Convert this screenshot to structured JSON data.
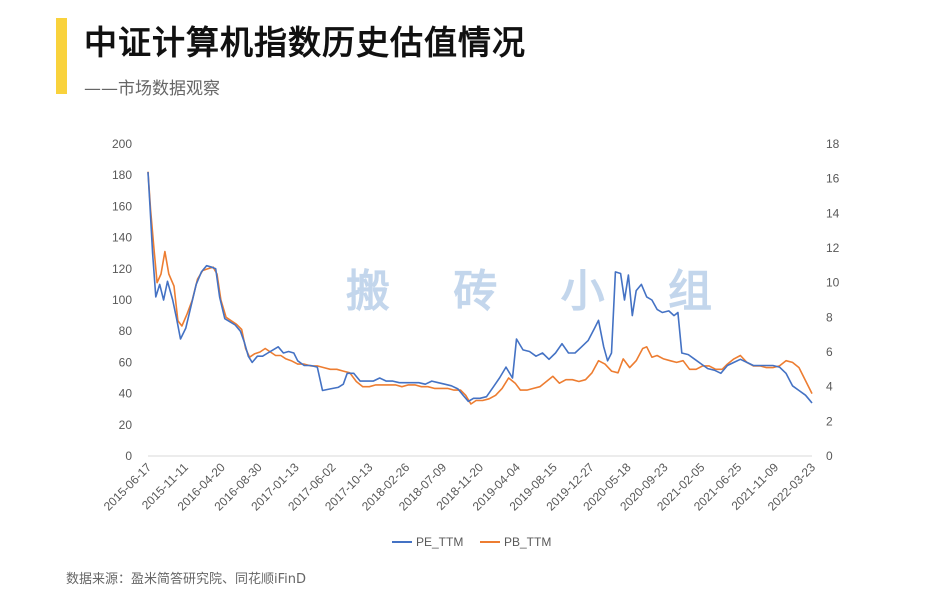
{
  "header": {
    "title": "中证计算机指数历史估值情况",
    "subtitle": "——市场数据观察"
  },
  "watermark": "搬 砖 小 组",
  "source": "数据来源：盈米简答研究院、同花顺iFinD",
  "colors": {
    "pe": "#4472c4",
    "pb": "#ed7d31",
    "accent": "#f9d23c"
  },
  "chart_data": {
    "type": "line",
    "title": "中证计算机指数历史估值情况",
    "x_tick_labels": [
      "2015-06-17",
      "2015-11-11",
      "2016-04-20",
      "2016-08-30",
      "2017-01-13",
      "2017-06-02",
      "2017-10-13",
      "2018-02-26",
      "2018-07-09",
      "2018-11-20",
      "2019-04-04",
      "2019-08-15",
      "2019-12-27",
      "2020-05-18",
      "2020-09-23",
      "2021-02-05",
      "2021-06-25",
      "2021-11-09",
      "2022-03-23"
    ],
    "y_left": {
      "range": [
        0,
        200
      ],
      "ticks": [
        0,
        20,
        40,
        60,
        80,
        100,
        120,
        140,
        160,
        180,
        200
      ]
    },
    "y_right": {
      "range": [
        0,
        18
      ],
      "ticks": [
        0,
        2,
        4,
        6,
        8,
        10,
        12,
        14,
        16,
        18
      ]
    },
    "legend_position": "bottom",
    "grid": false,
    "series": [
      {
        "name": "PE_TTM",
        "axis": "left",
        "color": "#4472c4",
        "points": [
          [
            0,
            182
          ],
          [
            0.15,
            160
          ],
          [
            0.35,
            130
          ],
          [
            0.6,
            102
          ],
          [
            0.9,
            110
          ],
          [
            1.2,
            100
          ],
          [
            1.5,
            112
          ],
          [
            1.9,
            100
          ],
          [
            2.2,
            88
          ],
          [
            2.5,
            75
          ],
          [
            2.9,
            82
          ],
          [
            3.3,
            96
          ],
          [
            3.7,
            110
          ],
          [
            4.1,
            118
          ],
          [
            4.5,
            122
          ],
          [
            4.9,
            121
          ],
          [
            5.2,
            120
          ],
          [
            5.5,
            102
          ],
          [
            5.9,
            88
          ],
          [
            6.3,
            86
          ],
          [
            6.7,
            84
          ],
          [
            7.1,
            80
          ],
          [
            7.4,
            73
          ],
          [
            7.7,
            64
          ],
          [
            8.0,
            60
          ],
          [
            8.4,
            64
          ],
          [
            8.8,
            64
          ],
          [
            9.2,
            66
          ],
          [
            9.6,
            68
          ],
          [
            10.0,
            70
          ],
          [
            10.4,
            66
          ],
          [
            10.8,
            67
          ],
          [
            11.2,
            66
          ],
          [
            11.5,
            61
          ],
          [
            12.0,
            58
          ],
          [
            12.5,
            58
          ],
          [
            13.0,
            57
          ],
          [
            13.4,
            42
          ],
          [
            14.0,
            43
          ],
          [
            14.6,
            44
          ],
          [
            15.0,
            46
          ],
          [
            15.3,
            53
          ],
          [
            15.8,
            53
          ],
          [
            16.3,
            48
          ],
          [
            16.8,
            48
          ],
          [
            17.3,
            48
          ],
          [
            17.8,
            50
          ],
          [
            18.3,
            48
          ],
          [
            18.8,
            48
          ],
          [
            19.3,
            47
          ],
          [
            19.8,
            47
          ],
          [
            20.3,
            47
          ],
          [
            20.8,
            47
          ],
          [
            21.3,
            46
          ],
          [
            21.8,
            48
          ],
          [
            22.3,
            47
          ],
          [
            22.8,
            46
          ],
          [
            23.3,
            45
          ],
          [
            23.8,
            43
          ],
          [
            24.2,
            39
          ],
          [
            24.6,
            35
          ],
          [
            25.0,
            37
          ],
          [
            25.5,
            37
          ],
          [
            26.0,
            38
          ],
          [
            26.5,
            44
          ],
          [
            27.0,
            50
          ],
          [
            27.5,
            57
          ],
          [
            28.0,
            50
          ],
          [
            28.3,
            75
          ],
          [
            28.8,
            68
          ],
          [
            29.3,
            67
          ],
          [
            29.8,
            64
          ],
          [
            30.3,
            66
          ],
          [
            30.8,
            62
          ],
          [
            31.3,
            66
          ],
          [
            31.8,
            72
          ],
          [
            32.3,
            66
          ],
          [
            32.8,
            66
          ],
          [
            33.3,
            70
          ],
          [
            33.8,
            74
          ],
          [
            34.3,
            82
          ],
          [
            34.6,
            87
          ],
          [
            35.0,
            70
          ],
          [
            35.3,
            61
          ],
          [
            35.6,
            66
          ],
          [
            35.9,
            118
          ],
          [
            36.3,
            117
          ],
          [
            36.6,
            100
          ],
          [
            36.9,
            116
          ],
          [
            37.2,
            90
          ],
          [
            37.5,
            106
          ],
          [
            37.9,
            110
          ],
          [
            38.3,
            102
          ],
          [
            38.7,
            100
          ],
          [
            39.1,
            94
          ],
          [
            39.5,
            92
          ],
          [
            40.0,
            93
          ],
          [
            40.4,
            90
          ],
          [
            40.7,
            92
          ],
          [
            41.0,
            66
          ],
          [
            41.5,
            65
          ],
          [
            42.0,
            62
          ],
          [
            42.5,
            59
          ],
          [
            43.0,
            56
          ],
          [
            43.5,
            55
          ],
          [
            44.0,
            53
          ],
          [
            44.5,
            58
          ],
          [
            45.0,
            60
          ],
          [
            45.5,
            62
          ],
          [
            46.0,
            60
          ],
          [
            46.5,
            58
          ],
          [
            47.0,
            58
          ],
          [
            47.5,
            58
          ],
          [
            48.0,
            58
          ],
          [
            48.5,
            57
          ],
          [
            49.0,
            53
          ],
          [
            49.5,
            45
          ],
          [
            50.0,
            42
          ],
          [
            50.5,
            39
          ],
          [
            50.8,
            36
          ],
          [
            51.0,
            34
          ]
        ]
      },
      {
        "name": "PB_TTM",
        "axis": "right",
        "color": "#ed7d31",
        "points": [
          [
            0,
            16.4
          ],
          [
            0.2,
            14.2
          ],
          [
            0.45,
            12.0
          ],
          [
            0.7,
            10.0
          ],
          [
            1.0,
            10.5
          ],
          [
            1.3,
            11.8
          ],
          [
            1.6,
            10.5
          ],
          [
            2.0,
            9.8
          ],
          [
            2.3,
            7.8
          ],
          [
            2.6,
            7.5
          ],
          [
            3.0,
            8.2
          ],
          [
            3.4,
            9.0
          ],
          [
            3.8,
            10.2
          ],
          [
            4.2,
            10.7
          ],
          [
            4.6,
            10.8
          ],
          [
            5.0,
            10.9
          ],
          [
            5.3,
            10.5
          ],
          [
            5.6,
            9.0
          ],
          [
            6.0,
            8.0
          ],
          [
            6.4,
            7.8
          ],
          [
            6.8,
            7.6
          ],
          [
            7.2,
            7.3
          ],
          [
            7.5,
            6.2
          ],
          [
            7.8,
            5.7
          ],
          [
            8.2,
            5.9
          ],
          [
            8.6,
            6.0
          ],
          [
            9.0,
            6.2
          ],
          [
            9.4,
            6.0
          ],
          [
            9.8,
            5.8
          ],
          [
            10.2,
            5.8
          ],
          [
            10.6,
            5.6
          ],
          [
            11.0,
            5.5
          ],
          [
            11.5,
            5.3
          ],
          [
            12.0,
            5.3
          ],
          [
            12.5,
            5.2
          ],
          [
            13.0,
            5.2
          ],
          [
            13.5,
            5.1
          ],
          [
            14.0,
            5.0
          ],
          [
            14.5,
            5.0
          ],
          [
            15.0,
            4.9
          ],
          [
            15.5,
            4.8
          ],
          [
            16.0,
            4.3
          ],
          [
            16.5,
            4.0
          ],
          [
            17.0,
            4.0
          ],
          [
            17.5,
            4.1
          ],
          [
            18.0,
            4.1
          ],
          [
            18.5,
            4.1
          ],
          [
            19.0,
            4.1
          ],
          [
            19.5,
            4.0
          ],
          [
            20.0,
            4.1
          ],
          [
            20.5,
            4.1
          ],
          [
            21.0,
            4.0
          ],
          [
            21.5,
            4.0
          ],
          [
            22.0,
            3.9
          ],
          [
            22.5,
            3.9
          ],
          [
            23.0,
            3.9
          ],
          [
            23.5,
            3.8
          ],
          [
            24.0,
            3.8
          ],
          [
            24.4,
            3.5
          ],
          [
            24.8,
            3.0
          ],
          [
            25.2,
            3.2
          ],
          [
            25.7,
            3.2
          ],
          [
            26.2,
            3.3
          ],
          [
            26.7,
            3.5
          ],
          [
            27.2,
            3.9
          ],
          [
            27.7,
            4.5
          ],
          [
            28.2,
            4.2
          ],
          [
            28.6,
            3.8
          ],
          [
            29.1,
            3.8
          ],
          [
            29.6,
            3.9
          ],
          [
            30.1,
            4.0
          ],
          [
            30.6,
            4.3
          ],
          [
            31.1,
            4.6
          ],
          [
            31.6,
            4.2
          ],
          [
            32.1,
            4.4
          ],
          [
            32.6,
            4.4
          ],
          [
            33.1,
            4.3
          ],
          [
            33.6,
            4.4
          ],
          [
            34.1,
            4.8
          ],
          [
            34.6,
            5.5
          ],
          [
            35.1,
            5.3
          ],
          [
            35.6,
            4.9
          ],
          [
            36.1,
            4.8
          ],
          [
            36.5,
            5.6
          ],
          [
            37.0,
            5.1
          ],
          [
            37.5,
            5.5
          ],
          [
            38.0,
            6.2
          ],
          [
            38.3,
            6.3
          ],
          [
            38.7,
            5.7
          ],
          [
            39.1,
            5.8
          ],
          [
            39.6,
            5.6
          ],
          [
            40.1,
            5.5
          ],
          [
            40.6,
            5.4
          ],
          [
            41.1,
            5.5
          ],
          [
            41.6,
            5.0
          ],
          [
            42.1,
            5.0
          ],
          [
            42.6,
            5.2
          ],
          [
            43.1,
            5.2
          ],
          [
            43.6,
            5.0
          ],
          [
            44.1,
            5.0
          ],
          [
            44.5,
            5.3
          ],
          [
            45.0,
            5.6
          ],
          [
            45.5,
            5.8
          ],
          [
            46.0,
            5.4
          ],
          [
            46.5,
            5.2
          ],
          [
            47.0,
            5.2
          ],
          [
            47.5,
            5.1
          ],
          [
            48.0,
            5.1
          ],
          [
            48.5,
            5.2
          ],
          [
            49.0,
            5.5
          ],
          [
            49.5,
            5.4
          ],
          [
            50.0,
            5.1
          ],
          [
            50.4,
            4.5
          ],
          [
            50.8,
            3.9
          ],
          [
            51.0,
            3.6
          ]
        ]
      }
    ]
  }
}
